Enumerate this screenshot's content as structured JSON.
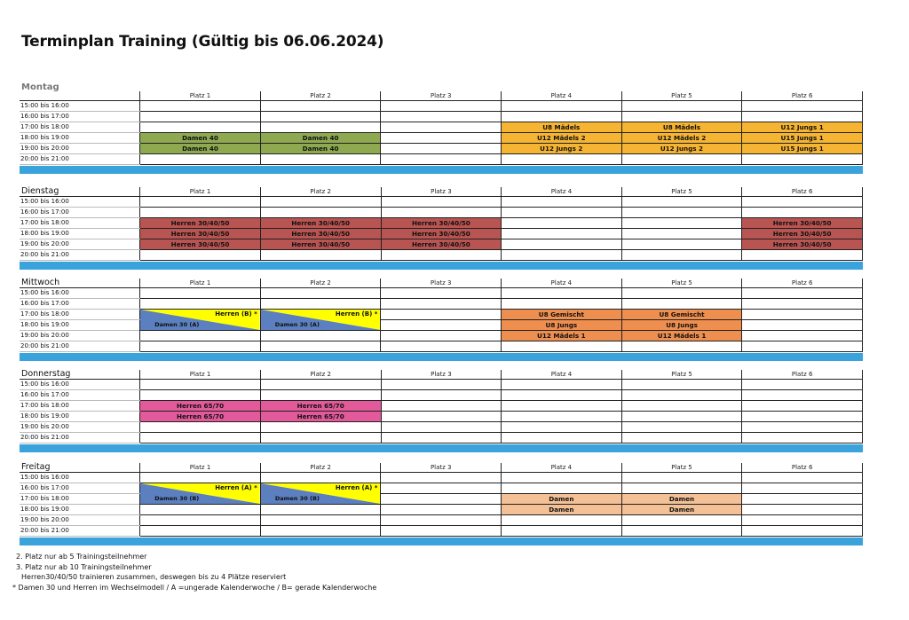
{
  "title": "Terminplan Training (Gültig bis 06.06.2024)",
  "colors": {
    "olive": "#8fa950",
    "orange": "#f5b431",
    "red": "#b85451",
    "salmon": "#ee8e4f",
    "pink": "#e25a9a",
    "peach": "#f4c196",
    "yellow": "#ffff00",
    "blue": "#5b7fbf",
    "bar": "#3aa3dc"
  },
  "courts": [
    "Platz 1",
    "Platz 2",
    "Platz 3",
    "Platz 4",
    "Platz 5",
    "Platz 6"
  ],
  "times": [
    "15:00 bis 16:00",
    "16:00 bis 17:00",
    "17:00 bis 18:00",
    "18:00 bis 19:00",
    "19:00 bis 20:00",
    "20:00 bis 21:00"
  ],
  "days": [
    {
      "name": "Montag",
      "rows": [
        [
          null,
          null,
          null,
          null,
          null,
          null
        ],
        [
          null,
          null,
          null,
          null,
          null,
          null
        ],
        [
          null,
          null,
          null,
          {
            "text": "U8 Mädels",
            "color": "orange"
          },
          {
            "text": "U8 Mädels",
            "color": "orange"
          },
          {
            "text": "U12 Jungs 1",
            "color": "orange"
          }
        ],
        [
          {
            "text": "Damen 40",
            "color": "olive"
          },
          {
            "text": "Damen 40",
            "color": "olive"
          },
          null,
          {
            "text": "U12 Mädels 2",
            "color": "orange"
          },
          {
            "text": "U12 Mädels 2",
            "color": "orange"
          },
          {
            "text": "U15 Jungs 1",
            "color": "orange"
          }
        ],
        [
          {
            "text": "Damen 40",
            "color": "olive"
          },
          {
            "text": "Damen 40",
            "color": "olive"
          },
          null,
          {
            "text": "U12 Jungs 2",
            "color": "orange"
          },
          {
            "text": "U12 Jungs 2",
            "color": "orange"
          },
          {
            "text": "U15 Jungs 1",
            "color": "orange"
          }
        ],
        [
          null,
          null,
          null,
          null,
          null,
          null
        ]
      ]
    },
    {
      "name": "Dienstag",
      "rows": [
        [
          null,
          null,
          null,
          null,
          null,
          null
        ],
        [
          null,
          null,
          null,
          null,
          null,
          null
        ],
        [
          {
            "text": "Herren 30/40/50",
            "color": "red"
          },
          {
            "text": "Herren 30/40/50",
            "color": "red"
          },
          {
            "text": "Herren 30/40/50",
            "color": "red"
          },
          null,
          null,
          {
            "text": "Herren 30/40/50",
            "color": "red"
          }
        ],
        [
          {
            "text": "Herren 30/40/50",
            "color": "red"
          },
          {
            "text": "Herren 30/40/50",
            "color": "red"
          },
          {
            "text": "Herren 30/40/50",
            "color": "red"
          },
          null,
          null,
          {
            "text": "Herren 30/40/50",
            "color": "red"
          }
        ],
        [
          {
            "text": "Herren 30/40/50",
            "color": "red"
          },
          {
            "text": "Herren 30/40/50",
            "color": "red"
          },
          {
            "text": "Herren 30/40/50",
            "color": "red"
          },
          null,
          null,
          {
            "text": "Herren 30/40/50",
            "color": "red"
          }
        ],
        [
          null,
          null,
          null,
          null,
          null,
          null
        ]
      ]
    },
    {
      "name": "Mittwoch",
      "rows": [
        [
          null,
          null,
          null,
          null,
          null,
          null
        ],
        [
          null,
          null,
          null,
          null,
          null,
          null
        ],
        [
          {
            "split": true,
            "top": "Herren (B) *",
            "bottom": "Damen 30 (A)"
          },
          {
            "split": true,
            "top": "Herren (B) *",
            "bottom": "Damen 30 (A)"
          },
          null,
          {
            "text": "U8  Gemischt",
            "color": "salmon"
          },
          {
            "text": "U8  Gemischt",
            "color": "salmon"
          },
          null
        ],
        [
          "span",
          "span",
          null,
          {
            "text": "U8  Jungs",
            "color": "salmon"
          },
          {
            "text": "U8  Jungs",
            "color": "salmon"
          },
          null
        ],
        [
          null,
          null,
          null,
          {
            "text": "U12 Mädels 1",
            "color": "salmon"
          },
          {
            "text": "U12 Mädels 1",
            "color": "salmon"
          },
          null
        ],
        [
          null,
          null,
          null,
          null,
          null,
          null
        ]
      ]
    },
    {
      "name": "Donnerstag",
      "rows": [
        [
          null,
          null,
          null,
          null,
          null,
          null
        ],
        [
          null,
          null,
          null,
          null,
          null,
          null
        ],
        [
          {
            "text": "Herren 65/70",
            "color": "pink"
          },
          {
            "text": "Herren 65/70",
            "color": "pink"
          },
          null,
          null,
          null,
          null
        ],
        [
          {
            "text": "Herren 65/70",
            "color": "pink"
          },
          {
            "text": "Herren 65/70",
            "color": "pink"
          },
          null,
          null,
          null,
          null
        ],
        [
          null,
          null,
          null,
          null,
          null,
          null
        ],
        [
          null,
          null,
          null,
          null,
          null,
          null
        ]
      ]
    },
    {
      "name": "Freitag",
      "rows": [
        [
          null,
          null,
          null,
          null,
          null,
          null
        ],
        [
          {
            "split": true,
            "top": "Herren (A) *",
            "bottom": "Damen 30 (B)"
          },
          {
            "split": true,
            "top": "Herren (A) *",
            "bottom": "Damen 30 (B)"
          },
          null,
          null,
          null,
          null
        ],
        [
          "span",
          "span",
          null,
          {
            "text": "Damen",
            "color": "peach"
          },
          {
            "text": "Damen",
            "color": "peach"
          },
          null
        ],
        [
          null,
          null,
          null,
          {
            "text": "Damen",
            "color": "peach"
          },
          {
            "text": "Damen",
            "color": "peach"
          },
          null
        ],
        [
          null,
          null,
          null,
          null,
          null,
          null
        ],
        [
          null,
          null,
          null,
          null,
          null,
          null
        ]
      ]
    }
  ],
  "notes": [
    "2. Platz nur ab 5 Trainingsteilnehmer",
    "3. Platz nur ab 10 Trainingsteilnehmer",
    "Herren30/40/50 trainieren zusammen, deswegen bis zu 4 Plätze reserviert",
    "* Damen 30 und Herren im Wechselmodell / A =ungerade Kalenderwoche / B= gerade Kalenderwoche"
  ]
}
